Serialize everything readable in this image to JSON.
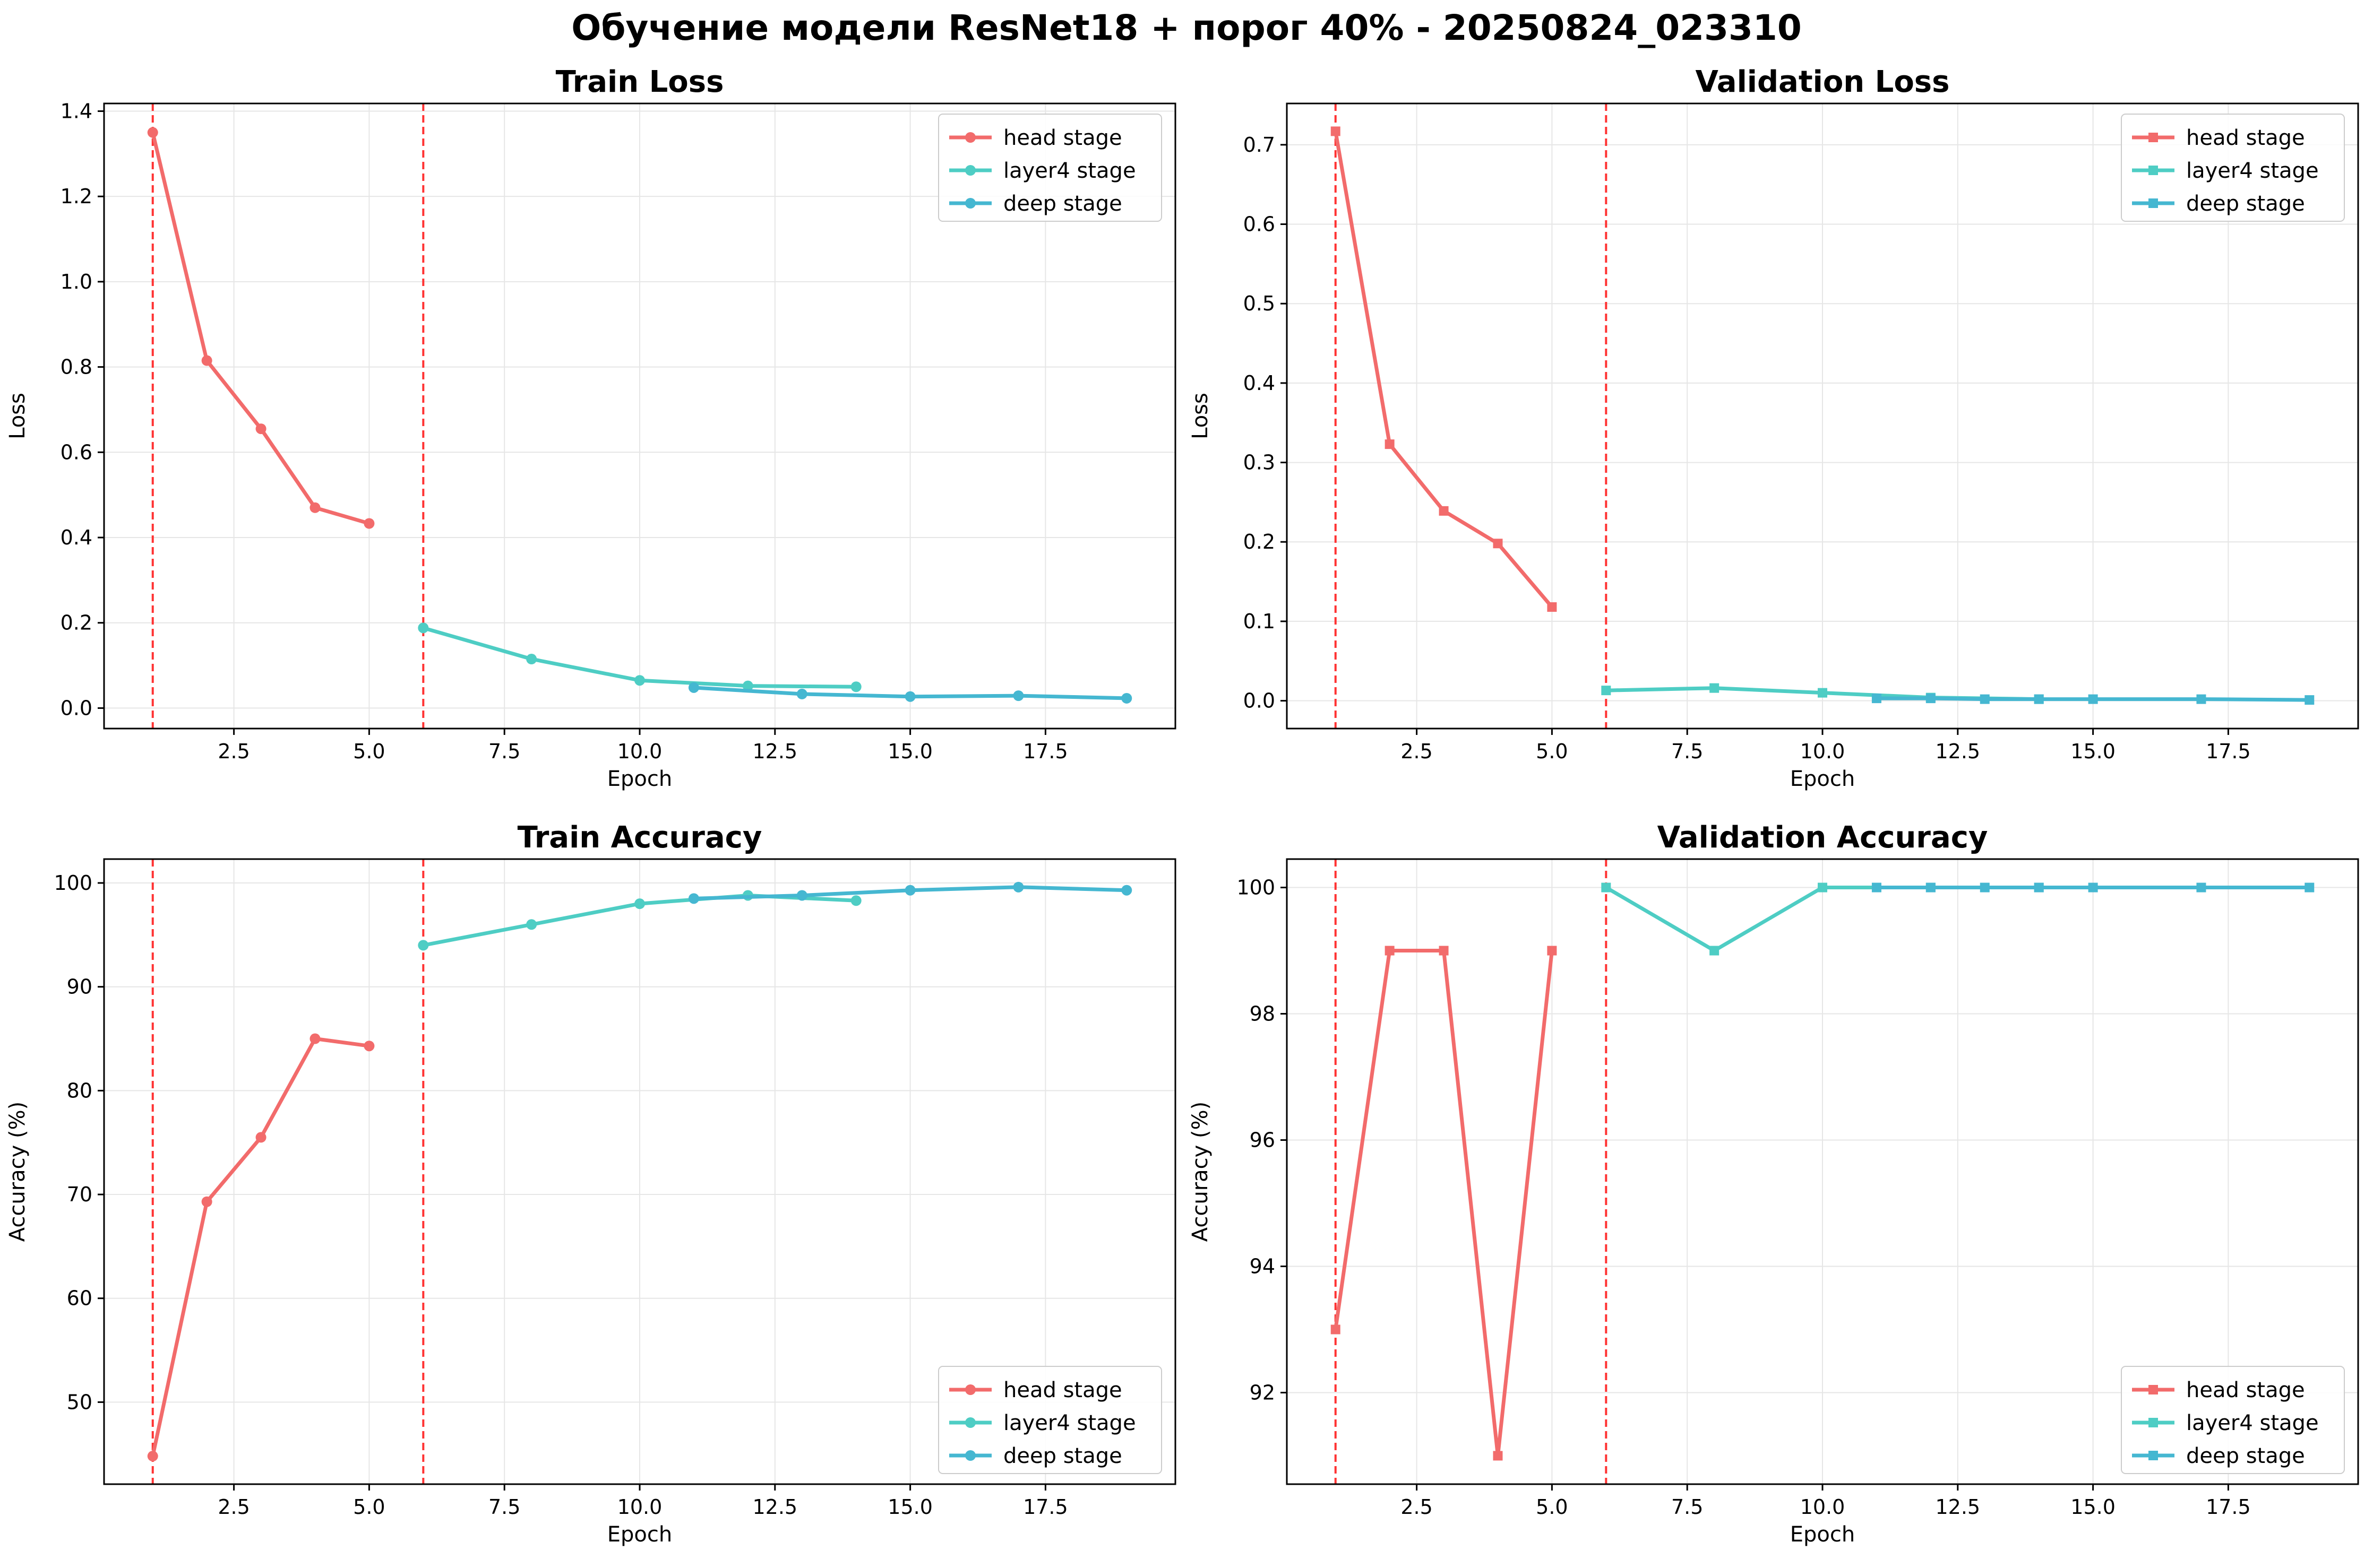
{
  "figure": {
    "title": "Обучение модели ResNet18 + порог 40% - 20250824_023310"
  },
  "colors": {
    "head": "#f26b6b",
    "layer4": "#4ecdc4",
    "deep": "#45b7d1",
    "stage_line": "#ff3333",
    "grid": "#e6e6e6",
    "axes": "#000000"
  },
  "chart_data": [
    {
      "type": "line",
      "title": "Train Loss",
      "xlabel": "Epoch",
      "ylabel": "Loss",
      "xlim": [
        0.1,
        19.9
      ],
      "ylim": [
        -0.048,
        1.418
      ],
      "xticks": [
        2.5,
        5.0,
        7.5,
        10.0,
        12.5,
        15.0,
        17.5
      ],
      "xtick_labels": [
        "2.5",
        "5.0",
        "7.5",
        "10.0",
        "12.5",
        "15.0",
        "17.5"
      ],
      "yticks": [
        0.0,
        0.2,
        0.4,
        0.6,
        0.8,
        1.0,
        1.2,
        1.4
      ],
      "ytick_labels": [
        "0.0",
        "0.2",
        "0.4",
        "0.6",
        "0.8",
        "1.0",
        "1.2",
        "1.4"
      ],
      "vlines": [
        1,
        6
      ],
      "marker": "circle",
      "legend": {
        "position": "top-right"
      },
      "series": [
        {
          "name": "head stage",
          "color": "#f26b6b",
          "x": [
            1,
            2,
            3,
            4,
            5
          ],
          "y": [
            1.35,
            0.815,
            0.655,
            0.47,
            0.433
          ]
        },
        {
          "name": "layer4 stage",
          "color": "#4ecdc4",
          "x": [
            6,
            8,
            10,
            12,
            14
          ],
          "y": [
            0.188,
            0.115,
            0.065,
            0.052,
            0.05
          ]
        },
        {
          "name": "deep stage",
          "color": "#45b7d1",
          "x": [
            11,
            13,
            15,
            17,
            19
          ],
          "y": [
            0.048,
            0.033,
            0.027,
            0.029,
            0.023
          ]
        }
      ]
    },
    {
      "type": "line",
      "title": "Validation Loss",
      "xlabel": "Epoch",
      "ylabel": "Loss",
      "xlim": [
        0.1,
        19.9
      ],
      "ylim": [
        -0.035,
        0.752
      ],
      "xticks": [
        2.5,
        5.0,
        7.5,
        10.0,
        12.5,
        15.0,
        17.5
      ],
      "xtick_labels": [
        "2.5",
        "5.0",
        "7.5",
        "10.0",
        "12.5",
        "15.0",
        "17.5"
      ],
      "yticks": [
        0.0,
        0.1,
        0.2,
        0.3,
        0.4,
        0.5,
        0.6,
        0.7
      ],
      "ytick_labels": [
        "0.0",
        "0.1",
        "0.2",
        "0.3",
        "0.4",
        "0.5",
        "0.6",
        "0.7"
      ],
      "vlines": [
        1,
        6
      ],
      "marker": "square",
      "legend": {
        "position": "top-right"
      },
      "series": [
        {
          "name": "head stage",
          "color": "#f26b6b",
          "x": [
            1,
            2,
            3,
            4,
            5
          ],
          "y": [
            0.717,
            0.323,
            0.239,
            0.198,
            0.118
          ]
        },
        {
          "name": "layer4 stage",
          "color": "#4ecdc4",
          "x": [
            6,
            8,
            10,
            12,
            14
          ],
          "y": [
            0.013,
            0.016,
            0.01,
            0.004,
            0.002
          ]
        },
        {
          "name": "deep stage",
          "color": "#45b7d1",
          "x": [
            11,
            12,
            13,
            14,
            15,
            17,
            19
          ],
          "y": [
            0.003,
            0.003,
            0.002,
            0.002,
            0.002,
            0.002,
            0.001
          ]
        }
      ]
    },
    {
      "type": "line",
      "title": "Train Accuracy",
      "xlabel": "Epoch",
      "ylabel": "Accuracy (%)",
      "xlim": [
        0.1,
        19.9
      ],
      "ylim": [
        42.1,
        102.3
      ],
      "xticks": [
        2.5,
        5.0,
        7.5,
        10.0,
        12.5,
        15.0,
        17.5
      ],
      "xtick_labels": [
        "2.5",
        "5.0",
        "7.5",
        "10.0",
        "12.5",
        "15.0",
        "17.5"
      ],
      "yticks": [
        50,
        60,
        70,
        80,
        90,
        100
      ],
      "ytick_labels": [
        "50",
        "60",
        "70",
        "80",
        "90",
        "100"
      ],
      "vlines": [
        1,
        6
      ],
      "marker": "circle",
      "legend": {
        "position": "bottom-right"
      },
      "series": [
        {
          "name": "head stage",
          "color": "#f26b6b",
          "x": [
            1,
            2,
            3,
            4,
            5
          ],
          "y": [
            44.8,
            69.3,
            75.5,
            85.0,
            84.3
          ]
        },
        {
          "name": "layer4 stage",
          "color": "#4ecdc4",
          "x": [
            6,
            8,
            10,
            12,
            14
          ],
          "y": [
            94.0,
            96.0,
            98.0,
            98.8,
            98.3
          ]
        },
        {
          "name": "deep stage",
          "color": "#45b7d1",
          "x": [
            11,
            13,
            15,
            17,
            19
          ],
          "y": [
            98.5,
            98.8,
            99.3,
            99.6,
            99.3
          ]
        }
      ]
    },
    {
      "type": "line",
      "title": "Validation Accuracy",
      "xlabel": "Epoch",
      "ylabel": "Accuracy (%)",
      "xlim": [
        0.1,
        19.9
      ],
      "ylim": [
        90.55,
        100.45
      ],
      "xticks": [
        2.5,
        5.0,
        7.5,
        10.0,
        12.5,
        15.0,
        17.5
      ],
      "xtick_labels": [
        "2.5",
        "5.0",
        "7.5",
        "10.0",
        "12.5",
        "15.0",
        "17.5"
      ],
      "yticks": [
        92,
        94,
        96,
        98,
        100
      ],
      "ytick_labels": [
        "92",
        "94",
        "96",
        "98",
        "100"
      ],
      "vlines": [
        1,
        6
      ],
      "marker": "square",
      "legend": {
        "position": "bottom-right"
      },
      "series": [
        {
          "name": "head stage",
          "color": "#f26b6b",
          "x": [
            1,
            2,
            3,
            4,
            5
          ],
          "y": [
            93.0,
            99.0,
            99.0,
            91.0,
            99.0
          ]
        },
        {
          "name": "layer4 stage",
          "color": "#4ecdc4",
          "x": [
            6,
            8,
            10,
            12,
            14
          ],
          "y": [
            100.0,
            99.0,
            100.0,
            100.0,
            100.0
          ]
        },
        {
          "name": "deep stage",
          "color": "#45b7d1",
          "x": [
            11,
            12,
            13,
            14,
            15,
            17,
            19
          ],
          "y": [
            100.0,
            100.0,
            100.0,
            100.0,
            100.0,
            100.0,
            100.0
          ]
        }
      ]
    }
  ]
}
